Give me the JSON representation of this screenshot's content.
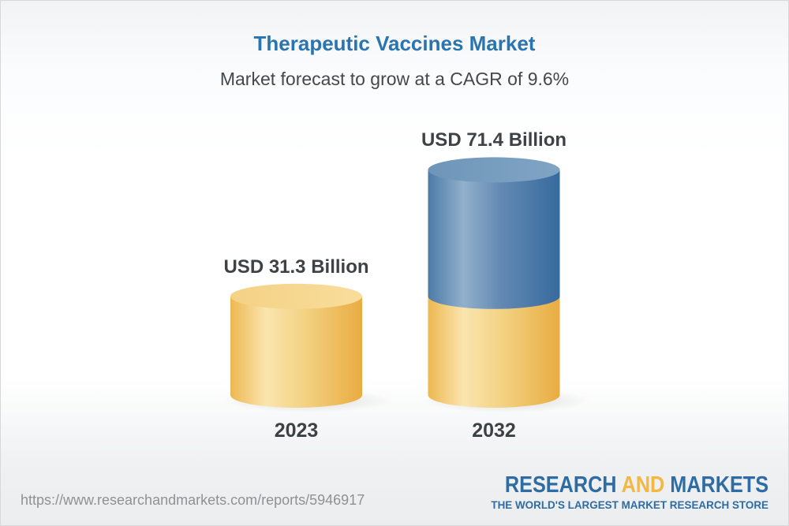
{
  "header": {
    "title": "Therapeutic Vaccines Market",
    "subtitle": "Market forecast to grow at a CAGR of 9.6%",
    "title_color": "#2A74B0",
    "subtitle_color": "#43484C"
  },
  "chart_data": {
    "type": "bar",
    "variant": "3d-cylinder",
    "title": "Therapeutic Vaccines Market",
    "subtitle": "Market forecast to grow at a CAGR of 9.6%",
    "cagr_pct": 9.6,
    "unit": "USD Billion",
    "categories": [
      "2023",
      "2032"
    ],
    "values": [
      31.3,
      71.4
    ],
    "value_labels": [
      "USD 31.3 Billion",
      "USD 71.4 Billion"
    ],
    "bars": [
      {
        "category": "2023",
        "label": "USD 31.3 Billion",
        "segments": [
          {
            "value": 31.3,
            "palette": "gold"
          }
        ]
      },
      {
        "category": "2032",
        "label": "USD 71.4 Billion",
        "segments": [
          {
            "value": 31.3,
            "palette": "gold"
          },
          {
            "value": 40.1,
            "palette": "blue"
          }
        ]
      }
    ],
    "colors": {
      "gold_left": "#EDB850",
      "gold_highlight": "#FAE5AF",
      "gold_mid": "#F3D385",
      "gold_right": "#E9AC41",
      "gold_top_left": "#F4D286",
      "gold_top_right": "#F8DD9B",
      "blue_left": "#4C7BA8",
      "blue_highlight": "#92B0CB",
      "blue_mid": "#6389B3",
      "blue_right": "#376A9E",
      "blue_top_left": "#6E96B9",
      "blue_top_right": "#81A4C4",
      "label_color": "#3D4247"
    },
    "legend": null,
    "grid": false
  },
  "footer": {
    "url": "https://www.researchandmarkets.com/reports/5946917",
    "logo": {
      "word1": "RESEARCH",
      "word2": "AND",
      "word3": "MARKETS",
      "tagline": "THE WORLD'S LARGEST MARKET RESEARCH STORE",
      "blue": "#2E6CA3",
      "gold": "#F3B844"
    }
  }
}
